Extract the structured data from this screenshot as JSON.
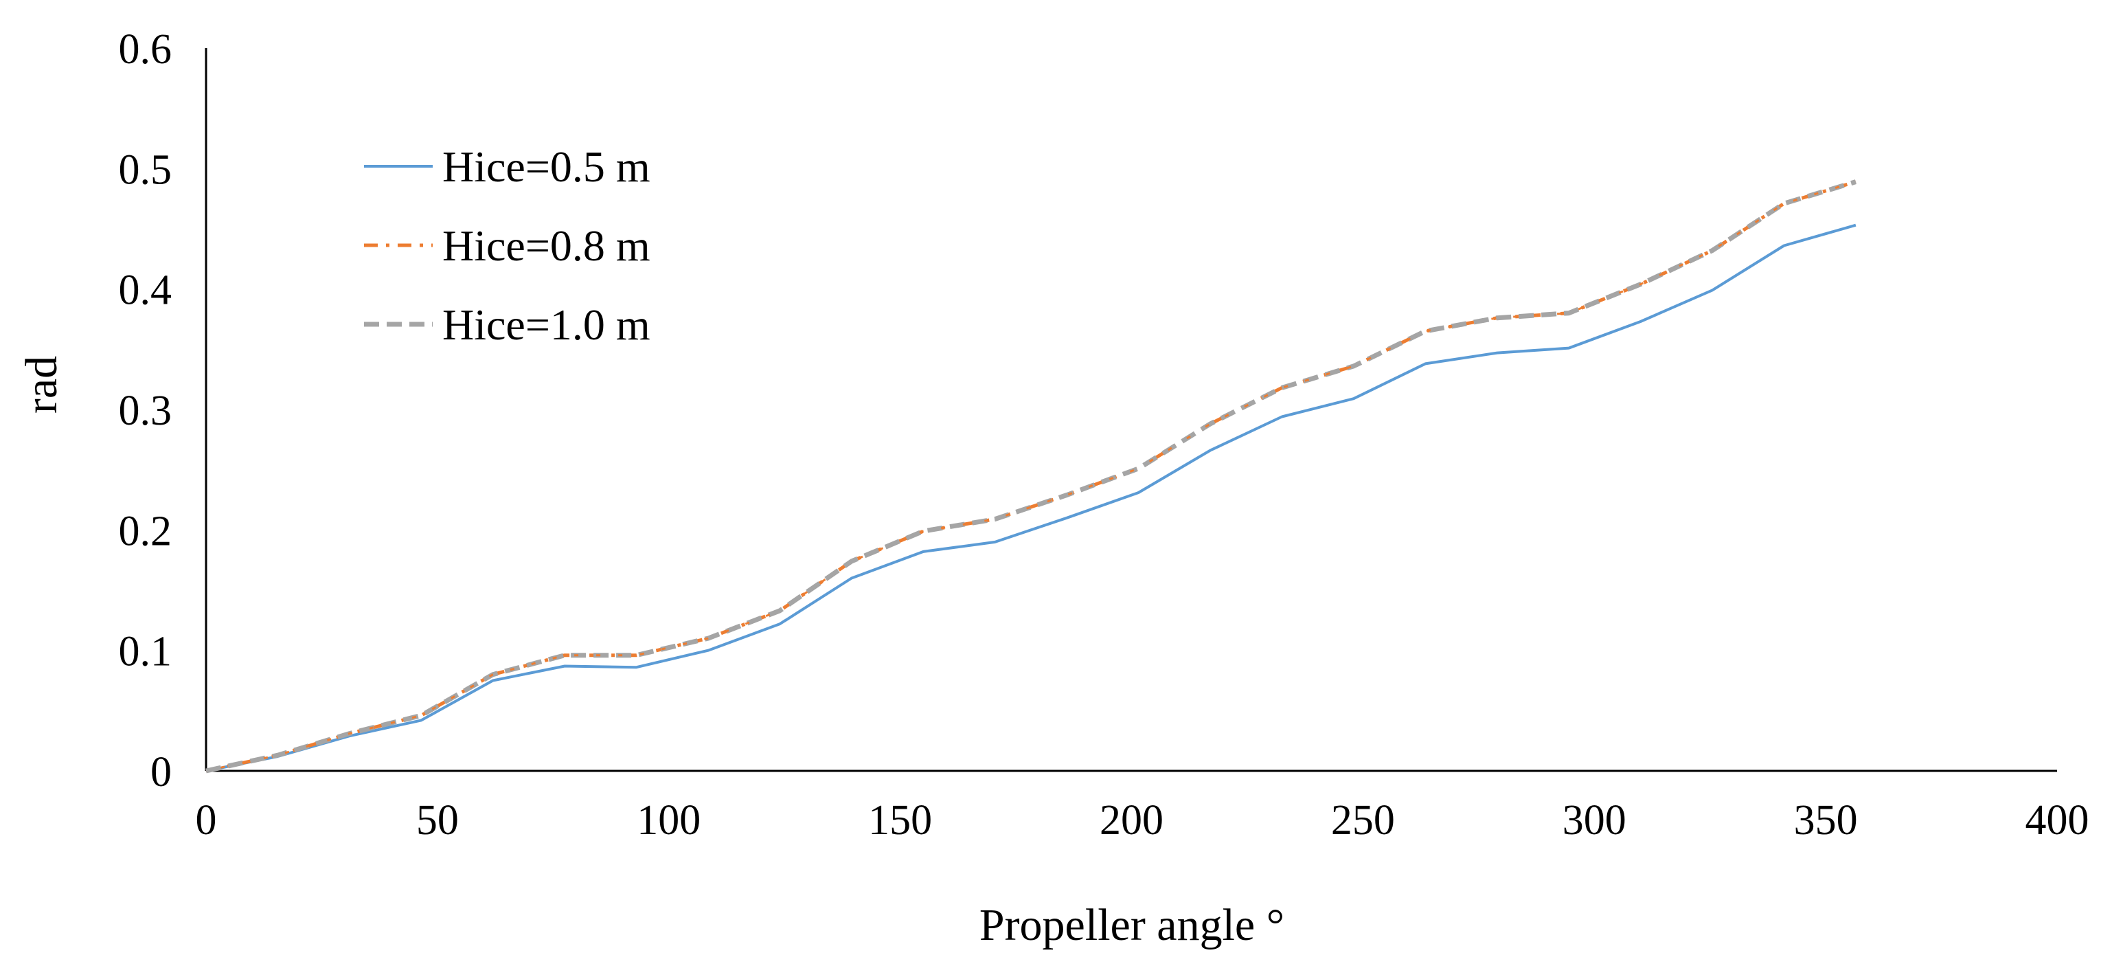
{
  "chart_data": {
    "type": "line",
    "title": "",
    "xlabel": "Propeller angle °",
    "ylabel": "rad",
    "xlim": [
      0,
      400
    ],
    "ylim": [
      0,
      0.6
    ],
    "x_ticks": [
      0,
      50,
      100,
      150,
      200,
      250,
      300,
      350,
      400
    ],
    "y_ticks": [
      0,
      0.1,
      0.2,
      0.3,
      0.4,
      0.5,
      0.6
    ],
    "x_tick_labels": [
      "0",
      "50",
      "100",
      "150",
      "200",
      "250",
      "300",
      "350",
      "400"
    ],
    "y_tick_labels": [
      "0",
      "0.1",
      "0.2",
      "0.3",
      "0.4",
      "0.5",
      "0.6"
    ],
    "grid": false,
    "legend_position": "top-left",
    "x": [
      0,
      15.5,
      31,
      46.5,
      62,
      77.5,
      93,
      108.5,
      124,
      139.5,
      155,
      170.5,
      186,
      201.5,
      217,
      232.5,
      248,
      263.5,
      279,
      294.5,
      310,
      325.5,
      341,
      356.5
    ],
    "series": [
      {
        "name": "Hice=0.5 m",
        "color": "#5b9bd5",
        "style": "solid",
        "values": [
          0,
          0.012,
          0.029,
          0.042,
          0.075,
          0.087,
          0.086,
          0.1,
          0.122,
          0.16,
          0.182,
          0.19,
          0.21,
          0.231,
          0.266,
          0.294,
          0.309,
          0.338,
          0.347,
          0.351,
          0.373,
          0.399,
          0.436,
          0.453
        ]
      },
      {
        "name": "Hice=0.8 m",
        "color": "#ed7d31",
        "style": "dash-dot",
        "values": [
          0,
          0.013,
          0.031,
          0.046,
          0.08,
          0.096,
          0.096,
          0.11,
          0.133,
          0.174,
          0.199,
          0.209,
          0.229,
          0.251,
          0.288,
          0.318,
          0.336,
          0.365,
          0.376,
          0.38,
          0.404,
          0.432,
          0.471,
          0.489
        ]
      },
      {
        "name": "Hice=1.0 m",
        "color": "#a5a5a5",
        "style": "dashed",
        "values": [
          0,
          0.013,
          0.031,
          0.046,
          0.08,
          0.096,
          0.096,
          0.11,
          0.133,
          0.174,
          0.199,
          0.209,
          0.229,
          0.251,
          0.288,
          0.318,
          0.336,
          0.365,
          0.376,
          0.38,
          0.404,
          0.432,
          0.471,
          0.489
        ]
      }
    ]
  }
}
